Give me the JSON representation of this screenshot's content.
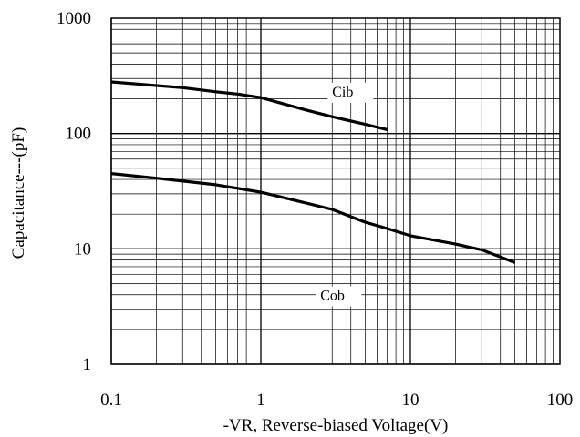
{
  "chart_data": {
    "type": "line",
    "xlabel": "-VR, Reverse-biased Voltage(V)",
    "ylabel": "Capacitance---(pF)",
    "x_scale": "log",
    "y_scale": "log",
    "xlim": [
      0.1,
      100
    ],
    "ylim": [
      1,
      1000
    ],
    "grid": true,
    "x_ticks": [
      0.1,
      1,
      10,
      100
    ],
    "x_tick_labels": [
      "0.1",
      "1",
      "10",
      "100"
    ],
    "y_ticks": [
      1,
      10,
      100,
      1000
    ],
    "y_tick_labels": [
      "1",
      "10",
      "100",
      "1000"
    ],
    "series": [
      {
        "name": "Cib",
        "x": [
          0.1,
          0.3,
          0.5,
          0.7,
          1,
          2,
          3,
          5,
          7
        ],
        "y": [
          280,
          250,
          230,
          220,
          205,
          160,
          140,
          120,
          108
        ]
      },
      {
        "name": "Cob",
        "x": [
          0.1,
          0.2,
          0.5,
          1,
          2,
          3,
          5,
          7,
          10,
          20,
          30,
          50
        ],
        "y": [
          45,
          41,
          36,
          31,
          25,
          22,
          17,
          15,
          13,
          11,
          9.8,
          7.6
        ]
      }
    ],
    "colors": {
      "line": "#000000",
      "grid": "#000000",
      "background": "#ffffff"
    }
  }
}
